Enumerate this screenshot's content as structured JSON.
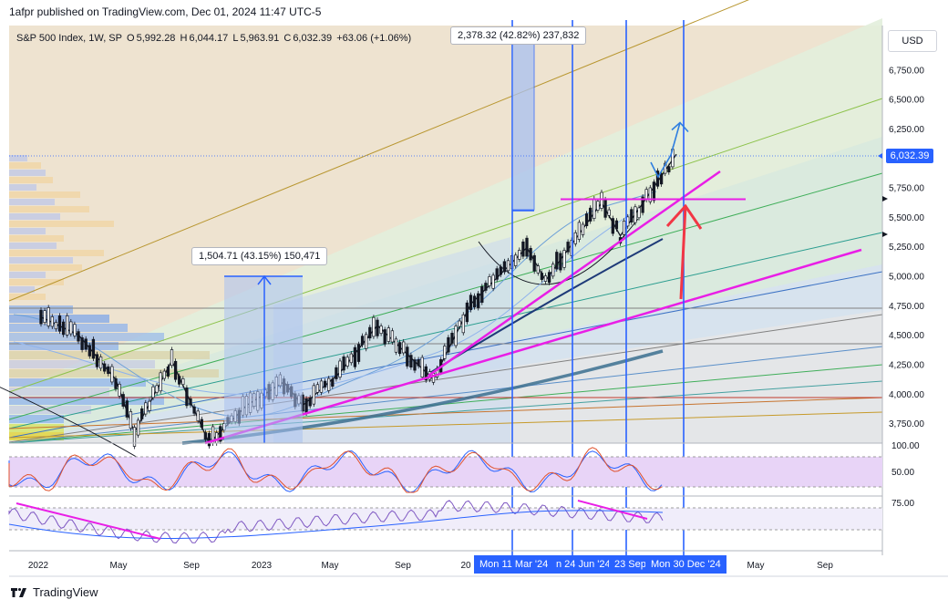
{
  "header": {
    "published": "1afpr published on TradingView.com, Dec 01, 2024 11:47 UTC-5"
  },
  "legend": {
    "symbol": "S&P 500 Index, 1W, SP",
    "open_label": "O",
    "open": "5,992.28",
    "high_label": "H",
    "high": "6,044.17",
    "low_label": "L",
    "low": "5,963.91",
    "close_label": "C",
    "close": "6,032.39",
    "change": "+63.06 (+1.06%)"
  },
  "currency": "USD",
  "last_price": "6,032.39",
  "measurements": [
    {
      "text": "2,378.32 (42.82%) 237,832"
    },
    {
      "text": "1,504.71 (43.15%) 150,471"
    }
  ],
  "date_labels": [
    "Mon 11 Mar '24",
    "n 24 Jun '24",
    "23 Sep",
    "Mon 30 Dec '24"
  ],
  "footer": {
    "brand": "TradingView"
  },
  "colors": {
    "accent_blue": "#2962ff",
    "magenta": "#e91ee6",
    "red_arrow": "#f23645",
    "candle_up": "#131722",
    "candle_down": "#131722"
  },
  "chart_data": {
    "type": "line",
    "title": "S&P 500 Index, 1W, SP",
    "price_axis": {
      "ticks": [
        "6,750.00",
        "6,500.00",
        "6,250.00",
        "5,750.00",
        "5,500.00",
        "5,250.00",
        "5,000.00",
        "4,750.00",
        "4,500.00",
        "4,250.00",
        "4,000.00",
        "3,750.00"
      ],
      "tick_values": [
        6750,
        6500,
        6250,
        5750,
        5500,
        5250,
        5000,
        4750,
        4500,
        4250,
        4000,
        3750
      ]
    },
    "time_axis": {
      "ticks": [
        "2022",
        "May",
        "Sep",
        "2023",
        "May",
        "Sep",
        "20",
        "May",
        "Sep"
      ]
    },
    "stochastic_axis": {
      "ticks": [
        "100.00",
        "50.00"
      ],
      "tick_values": [
        100,
        50
      ]
    },
    "rsi_axis": {
      "ticks": [
        "75.00"
      ],
      "tick_values": [
        75
      ]
    },
    "price_series": [
      {
        "date": "2022-01",
        "value": 4650
      },
      {
        "date": "2022-03",
        "value": 4500
      },
      {
        "date": "2022-05",
        "value": 4120
      },
      {
        "date": "2022-06",
        "value": 3670
      },
      {
        "date": "2022-08",
        "value": 4280
      },
      {
        "date": "2022-10",
        "value": 3580
      },
      {
        "date": "2022-12",
        "value": 3900
      },
      {
        "date": "2023-02",
        "value": 4100
      },
      {
        "date": "2023-03",
        "value": 3900
      },
      {
        "date": "2023-05",
        "value": 4180
      },
      {
        "date": "2023-07",
        "value": 4580
      },
      {
        "date": "2023-10",
        "value": 4120
      },
      {
        "date": "2023-12",
        "value": 4760
      },
      {
        "date": "2024-03",
        "value": 5240
      },
      {
        "date": "2024-04",
        "value": 4960
      },
      {
        "date": "2024-07",
        "value": 5620
      },
      {
        "date": "2024-08",
        "value": 5340
      },
      {
        "date": "2024-10",
        "value": 5800
      },
      {
        "date": "2024-11",
        "value": 6032.39
      }
    ],
    "horizontal_level": 5650,
    "projection_target": 6300,
    "grid": true
  }
}
